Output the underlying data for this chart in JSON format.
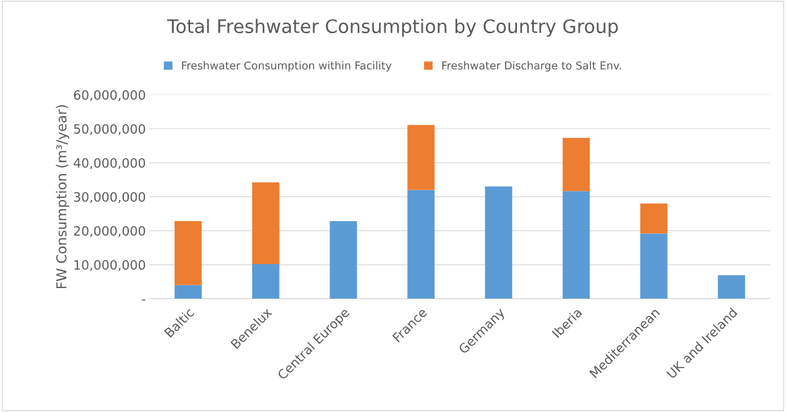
{
  "chart_data": {
    "type": "bar",
    "title": "Total Freshwater Consumption by Country Group",
    "ylabel": "FW Consumption (m³/year)",
    "categories": [
      "Baltic",
      "Benelux",
      "Central Europe",
      "France",
      "Germany",
      "Iberia",
      "Mediterranean",
      "UK and Ireland"
    ],
    "stacked": true,
    "series": [
      {
        "name": "Freshwater Consumption within Facility",
        "color": "#5b9bd5",
        "values": [
          4000000,
          10200000,
          22800000,
          32000000,
          33000000,
          31700000,
          19200000,
          6900000
        ]
      },
      {
        "name": "Freshwater Discharge to Salt Env.",
        "color": "#ed7d31",
        "values": [
          18800000,
          24000000,
          null,
          19100000,
          null,
          15600000,
          8800000,
          null
        ]
      }
    ],
    "ylim": [
      0,
      60000000
    ],
    "yticks": [
      {
        "value": 0,
        "label": "-"
      },
      {
        "value": 10000000,
        "label": "10,000,000"
      },
      {
        "value": 20000000,
        "label": "20,000,000"
      },
      {
        "value": 30000000,
        "label": "30,000,000"
      },
      {
        "value": 40000000,
        "label": "40,000,000"
      },
      {
        "value": 50000000,
        "label": "50,000,000"
      },
      {
        "value": 60000000,
        "label": "60,000,000"
      }
    ],
    "grid": "y",
    "legend": "top"
  }
}
